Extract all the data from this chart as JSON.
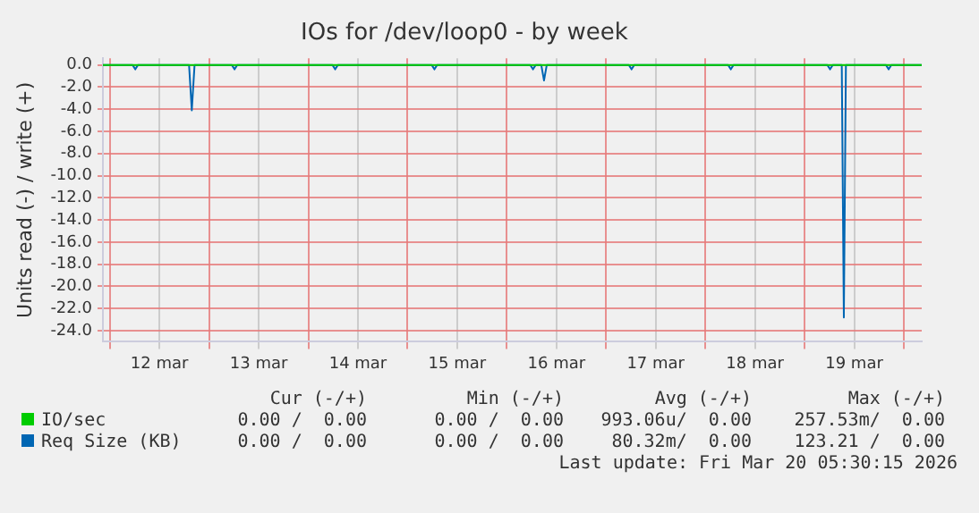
{
  "chart_data": {
    "type": "line",
    "title": "IOs for /dev/loop0 - by week",
    "ylabel": "Units read (-) / write (+)",
    "xlim": [
      "2026-03-11T22:20",
      "2026-03-20T04:20"
    ],
    "xticks": [
      {
        "value": "2026-03-12",
        "label": null
      },
      {
        "value": "2026-03-12T12:00",
        "label": "12 mar"
      },
      {
        "value": "2026-03-13",
        "label": null
      },
      {
        "value": "2026-03-13T12:00",
        "label": "13 mar"
      },
      {
        "value": "2026-03-14",
        "label": null
      },
      {
        "value": "2026-03-14T12:00",
        "label": "14 mar"
      },
      {
        "value": "2026-03-15",
        "label": null
      },
      {
        "value": "2026-03-15T12:00",
        "label": "15 mar"
      },
      {
        "value": "2026-03-16",
        "label": null
      },
      {
        "value": "2026-03-16T12:00",
        "label": "16 mar"
      },
      {
        "value": "2026-03-17",
        "label": null
      },
      {
        "value": "2026-03-17T12:00",
        "label": "17 mar"
      },
      {
        "value": "2026-03-18",
        "label": null
      },
      {
        "value": "2026-03-18T12:00",
        "label": "18 mar"
      },
      {
        "value": "2026-03-19",
        "label": null
      },
      {
        "value": "2026-03-19T12:00",
        "label": "19 mar"
      },
      {
        "value": "2026-03-20",
        "label": null
      }
    ],
    "ylim": [
      -25,
      0.6
    ],
    "yticks": [
      {
        "value": 0,
        "label": "0.0"
      },
      {
        "value": -2,
        "label": "-2.0"
      },
      {
        "value": -4,
        "label": "-4.0"
      },
      {
        "value": -6,
        "label": "-6.0"
      },
      {
        "value": -8,
        "label": "-8.0"
      },
      {
        "value": -10,
        "label": "-10.0"
      },
      {
        "value": -12,
        "label": "-12.0"
      },
      {
        "value": -14,
        "label": "-14.0"
      },
      {
        "value": -16,
        "label": "-16.0"
      },
      {
        "value": -18,
        "label": "-18.0"
      },
      {
        "value": -20,
        "label": "-20.0"
      },
      {
        "value": -22,
        "label": "-22.0"
      },
      {
        "value": -24,
        "label": "-24.0"
      }
    ],
    "grid": true,
    "legend": "bottom left",
    "marker": "none",
    "line_style": "solid",
    "series": [
      {
        "name": "IO/sec",
        "color": "#00cc00",
        "x": [
          "2026-03-11T22:20",
          "2026-03-20T04:20"
        ],
        "values": [
          0,
          0
        ]
      },
      {
        "name": "Req Size (KB)",
        "color": "#0066b3",
        "x": [
          "2026-03-11T22:20",
          "2026-03-12T05:30",
          "2026-03-12T06:10",
          "2026-03-12T06:50",
          "2026-03-12T19:10",
          "2026-03-12T19:50",
          "2026-03-12T20:30",
          "2026-03-13T05:30",
          "2026-03-13T06:10",
          "2026-03-13T06:50",
          "2026-03-14T05:50",
          "2026-03-14T06:30",
          "2026-03-14T07:10",
          "2026-03-15T05:50",
          "2026-03-15T06:30",
          "2026-03-15T07:10",
          "2026-03-16T05:40",
          "2026-03-16T06:20",
          "2026-03-16T07:00",
          "2026-03-16T08:20",
          "2026-03-16T09:00",
          "2026-03-16T09:40",
          "2026-03-17T05:30",
          "2026-03-17T06:10",
          "2026-03-17T06:50",
          "2026-03-18T05:30",
          "2026-03-18T06:10",
          "2026-03-18T06:50",
          "2026-03-19T05:30",
          "2026-03-19T06:10",
          "2026-03-19T06:50",
          "2026-03-19T09:00",
          "2026-03-19T09:30",
          "2026-03-19T10:00",
          "2026-03-19T19:40",
          "2026-03-19T20:20",
          "2026-03-19T21:00",
          "2026-03-20T04:20"
        ],
        "values": [
          0,
          0,
          -0.4,
          0,
          0,
          -4.1,
          0,
          0,
          -0.4,
          0,
          0,
          -0.4,
          0,
          0,
          -0.4,
          0,
          0,
          -0.4,
          0,
          0,
          -1.4,
          0,
          0,
          -0.4,
          0,
          0,
          -0.4,
          0,
          0,
          -0.4,
          0,
          0,
          -22.8,
          0,
          0,
          -0.4,
          0,
          0
        ]
      }
    ],
    "annotations": [
      "Cur (-/+)",
      "Min (-/+)",
      "Avg (-/+)",
      "Max (-/+)",
      "0.00 /  0.00",
      "0.00 /  0.00",
      "993.06u/  0.00",
      "257.53m/  0.00",
      "0.00 /  0.00",
      "0.00 /  0.00",
      "80.32m/  0.00",
      "123.21 /  0.00",
      "Last update: Fri Mar 20 05:30:15 2026"
    ]
  }
}
